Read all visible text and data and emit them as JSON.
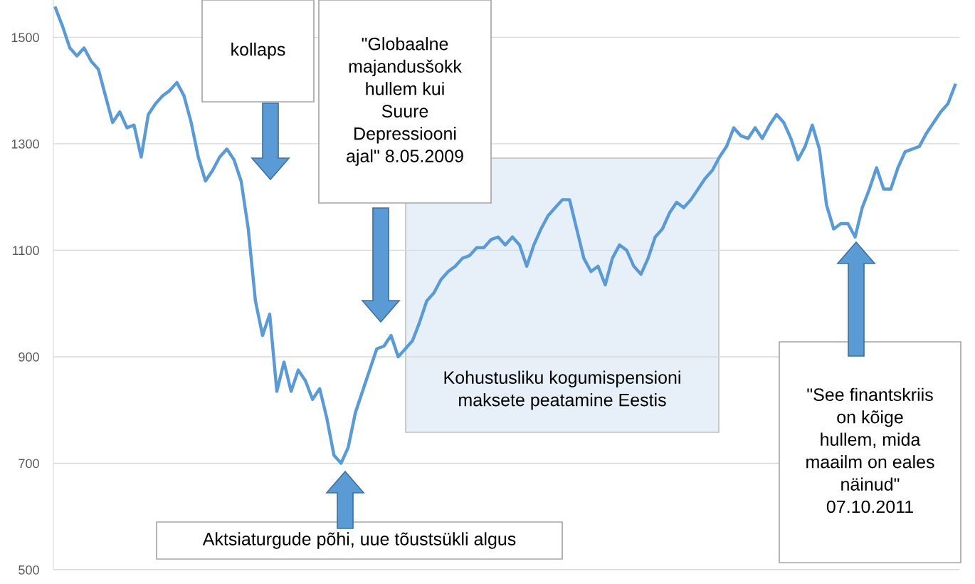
{
  "chart_data": {
    "type": "line",
    "categories": [
      null,
      null,
      null,
      null,
      null,
      null,
      null,
      null,
      null,
      null,
      null,
      null,
      null,
      null,
      null,
      null,
      null,
      null,
      null,
      null,
      null,
      null,
      null,
      null,
      null,
      null,
      null,
      null,
      null,
      null,
      null,
      null,
      null,
      null,
      null,
      null,
      null,
      null,
      null,
      null,
      null,
      null,
      null,
      null,
      null,
      null,
      null,
      null,
      null,
      null,
      null,
      null,
      null,
      null,
      null,
      null,
      null,
      null,
      null,
      null,
      null,
      null,
      null,
      null,
      null,
      null,
      null,
      null,
      null,
      null,
      null,
      null,
      null,
      null,
      null,
      null,
      null,
      null,
      null,
      null,
      null,
      null,
      null,
      null,
      null,
      null,
      null,
      null,
      null,
      null,
      null,
      null,
      null,
      null,
      null,
      null,
      null,
      null,
      null,
      null,
      null,
      null,
      null,
      null,
      null,
      null,
      null,
      null,
      null,
      null,
      null,
      null,
      null,
      null,
      null,
      null,
      null,
      null,
      null,
      null,
      null,
      null,
      null,
      null,
      null,
      null,
      null
    ],
    "series": [
      {
        "color": "#5b9bd5",
        "values": [
          1555,
          1520,
          1480,
          1465,
          1480,
          1455,
          1440,
          1390,
          1340,
          1360,
          1330,
          1335,
          1275,
          1355,
          1375,
          1390,
          1400,
          1415,
          1390,
          1340,
          1275,
          1230,
          1250,
          1275,
          1290,
          1270,
          1230,
          1140,
          1005,
          940,
          980,
          835,
          890,
          835,
          875,
          855,
          820,
          840,
          785,
          715,
          700,
          730,
          795,
          835,
          875,
          915,
          920,
          940,
          900,
          915,
          930,
          965,
          1005,
          1020,
          1045,
          1060,
          1070,
          1085,
          1090,
          1105,
          1105,
          1120,
          1125,
          1110,
          1125,
          1110,
          1070,
          1110,
          1140,
          1165,
          1180,
          1195,
          1195,
          1140,
          1085,
          1060,
          1070,
          1035,
          1085,
          1110,
          1100,
          1070,
          1055,
          1085,
          1125,
          1140,
          1170,
          1190,
          1180,
          1195,
          1215,
          1235,
          1250,
          1275,
          1295,
          1330,
          1315,
          1310,
          1330,
          1310,
          1335,
          1355,
          1340,
          1310,
          1270,
          1295,
          1335,
          1290,
          1185,
          1140,
          1150,
          1150,
          1125,
          1180,
          1215,
          1255,
          1215,
          1215,
          1255,
          1285,
          1290,
          1295,
          1320,
          1340,
          1360,
          1375,
          1410
        ]
      }
    ],
    "ylim": [
      500,
      1570
    ],
    "yticks": [
      500,
      700,
      900,
      1100,
      1300,
      1500
    ],
    "grid": "y",
    "legend": false,
    "marker": "none",
    "line_style": "solid",
    "annotations": [
      "kollaps",
      "\"Globaalne\nmajandusšokk\nhullem kui\nSuure\nDepressiooni\najal\" 8.05.2009",
      "Kohustusliku kogumispensioni\nmaksete peatamine Eestis",
      "Aktsiaturgude põhi, uue tõustsükli algus",
      "\"See finantskriis\non kõige\nhullem, mida\nmaailm on eales\nnäinud\"\n07.10.2011"
    ]
  }
}
